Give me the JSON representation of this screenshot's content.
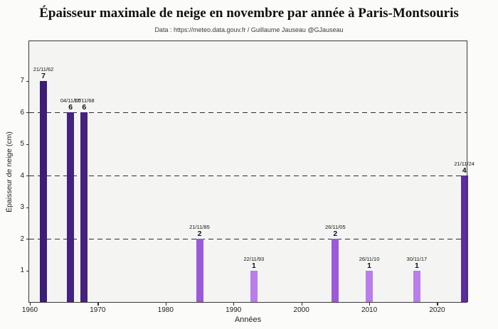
{
  "chart_data": {
    "type": "bar",
    "title": "Épaisseur maximale de neige en novembre par année à Paris-Montsouris",
    "subtitle": "Data : https://meteo.data.gouv.fr / Guillaume Jauseau @GJauseau",
    "xlabel": "Années",
    "ylabel": "Épaisseur de neige (cm)",
    "x_tick_labels": [
      "1960",
      "1970",
      "1980",
      "1990",
      "2000",
      "2010",
      "2020"
    ],
    "x_tick_years": [
      1960,
      1970,
      1980,
      1990,
      2000,
      2010,
      2020
    ],
    "y_tick_labels": [
      "1",
      "2",
      "3",
      "4",
      "5",
      "6",
      "7"
    ],
    "y_tick_values": [
      1,
      2,
      3,
      4,
      5,
      6,
      7
    ],
    "xlim": [
      1959.9,
      2024.35
    ],
    "ylim": [
      0,
      8.25
    ],
    "gridlines_y": [
      2,
      4,
      6
    ],
    "grid_style": "dashed",
    "legend": null,
    "units": "cm",
    "bars": [
      {
        "year": 1962,
        "date": "21/11/62",
        "value": 7,
        "color": "#3c1d78"
      },
      {
        "year": 1966,
        "date": "04/11/66",
        "value": 6,
        "color": "#45227f"
      },
      {
        "year": 1968,
        "date": "17/11/68",
        "value": 6,
        "color": "#45227f"
      },
      {
        "year": 1985,
        "date": "21/11/85",
        "value": 2,
        "color": "#9c59d9"
      },
      {
        "year": 1993,
        "date": "22/11/93",
        "value": 1,
        "color": "#b97ee9"
      },
      {
        "year": 2005,
        "date": "26/11/05",
        "value": 2,
        "color": "#9c59d9"
      },
      {
        "year": 2010,
        "date": "26/11/10",
        "value": 1,
        "color": "#b97ee9"
      },
      {
        "year": 2017,
        "date": "30/11/17",
        "value": 1,
        "color": "#b97ee9"
      },
      {
        "year": 2024,
        "date": "21/11/24",
        "value": 4,
        "color": "#5c2da0"
      }
    ],
    "colors": {
      "value_7": "#3c1d78",
      "value_6": "#45227f",
      "value_4": "#5c2da0",
      "value_2": "#9c59d9",
      "value_1": "#b97ee9",
      "plot_background": "#f4f4f3",
      "frame": "#3a3a3a"
    }
  }
}
